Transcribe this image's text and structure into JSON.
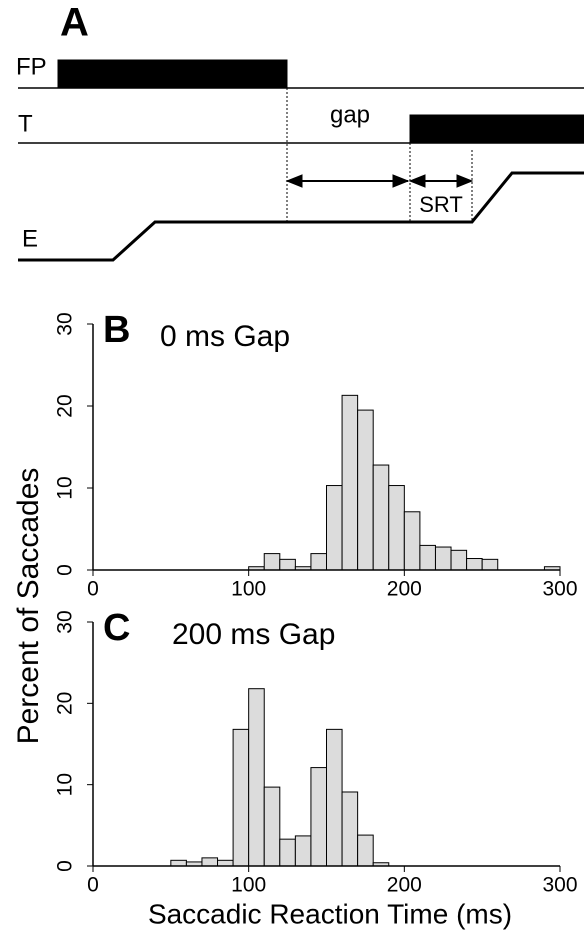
{
  "diagram": {
    "panel_label": "A",
    "rows": [
      "FP",
      "T",
      "E"
    ],
    "gap_label": "gap",
    "srt_label": "SRT"
  },
  "chart_data": [
    {
      "type": "histogram",
      "panel_label": "B",
      "title": "0 ms Gap",
      "ylabel": "Percent of Saccades",
      "bins": [
        100,
        110,
        120,
        130,
        140,
        150,
        160,
        170,
        180,
        190,
        200,
        210,
        220,
        230,
        240,
        250,
        260,
        270,
        280,
        290,
        300
      ],
      "values": [
        0.4,
        2.0,
        1.3,
        0.4,
        2.0,
        10.3,
        21.3,
        19.5,
        12.8,
        10.3,
        7.1,
        3.0,
        2.8,
        2.4,
        1.4,
        1.3,
        0,
        0,
        0,
        0.4
      ],
      "color": "#dcdcdc",
      "xlim": [
        0,
        300
      ],
      "xticks": [
        0,
        100,
        200,
        300
      ],
      "ylim": [
        0,
        30
      ],
      "yticks": [
        0,
        10,
        20,
        30
      ]
    },
    {
      "type": "histogram",
      "panel_label": "C",
      "title": "200 ms Gap",
      "xlabel": "Saccadic Reaction Time (ms)",
      "bins": [
        50,
        60,
        70,
        80,
        90,
        100,
        110,
        120,
        130,
        140,
        150,
        160,
        170,
        180,
        190
      ],
      "values": [
        0.7,
        0.5,
        1.0,
        0.7,
        16.8,
        21.8,
        9.7,
        3.3,
        3.7,
        12.1,
        16.8,
        9.1,
        3.8,
        0.4
      ],
      "color": "#dcdcdc",
      "xlim": [
        0,
        300
      ],
      "xticks": [
        0,
        100,
        200,
        300
      ],
      "ylim": [
        0,
        30
      ],
      "yticks": [
        0,
        10,
        20,
        30
      ]
    }
  ]
}
